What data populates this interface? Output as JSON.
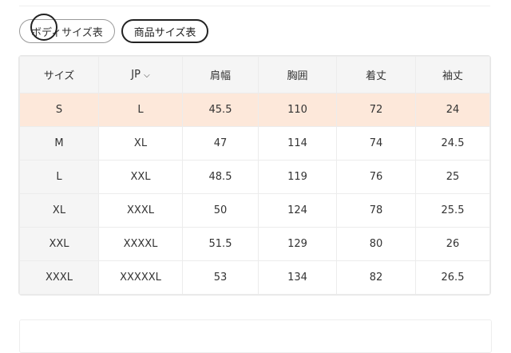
{
  "tabs": [
    {
      "label": "ボディサイズ表",
      "active": false
    },
    {
      "label": "商品サイズ表",
      "active": true
    }
  ],
  "table": {
    "headers": [
      "サイズ",
      "JP",
      "肩幅",
      "胸囲",
      "着丈",
      "袖丈"
    ],
    "jp_dropdown_icon": "chevron-down-icon",
    "highlight_color": "#fde8da",
    "rows": [
      [
        "S",
        "L",
        "45.5",
        "110",
        "72",
        "24"
      ],
      [
        "M",
        "XL",
        "47",
        "114",
        "74",
        "24.5"
      ],
      [
        "L",
        "XXL",
        "48.5",
        "119",
        "76",
        "25"
      ],
      [
        "XL",
        "XXXL",
        "50",
        "124",
        "78",
        "25.5"
      ],
      [
        "XXL",
        "XXXXL",
        "51.5",
        "129",
        "80",
        "26"
      ],
      [
        "XXXL",
        "XXXXXL",
        "53",
        "134",
        "82",
        "26.5"
      ]
    ]
  }
}
